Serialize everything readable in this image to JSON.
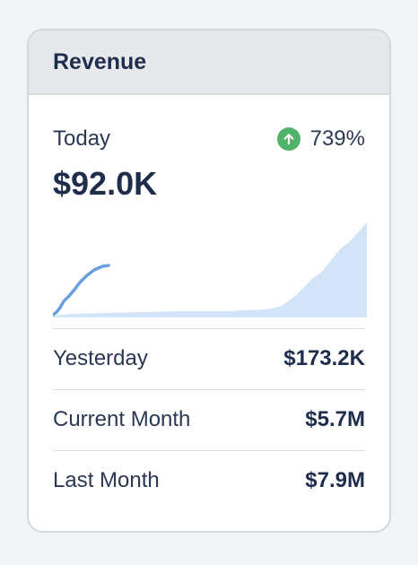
{
  "card": {
    "title": "Revenue"
  },
  "today": {
    "label": "Today",
    "value": "$92.0K",
    "change": "739%",
    "change_direction_icon": "arrow-up-circle-icon",
    "change_color": "#4fb36a"
  },
  "comparisons": [
    {
      "label": "Yesterday",
      "value": "$173.2K"
    },
    {
      "label": "Current Month",
      "value": "$5.7M"
    },
    {
      "label": "Last Month",
      "value": "$7.9M"
    }
  ],
  "colors": {
    "today_line": "#6a9fe0",
    "yesterday_area": "#d4e4f8",
    "text_primary": "#1f2d4d"
  }
}
